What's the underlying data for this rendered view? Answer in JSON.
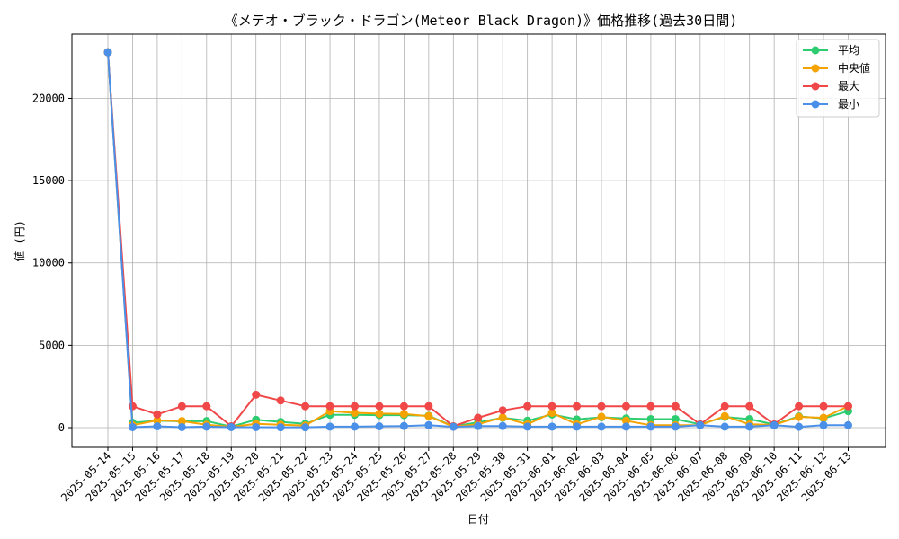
{
  "chart_data": {
    "type": "line",
    "title": "《メテオ・ブラック・ドラゴン(Meteor Black  Dragon)》価格推移(過去30日間)",
    "xlabel": "日付",
    "ylabel": "値 (円)",
    "ylim": [
      -1200,
      23900
    ],
    "yticks": [
      0,
      5000,
      10000,
      15000,
      20000
    ],
    "grid": true,
    "legend_position": "top-right",
    "categories": [
      "2025-05-14",
      "2025-05-15",
      "2025-05-16",
      "2025-05-17",
      "2025-05-18",
      "2025-05-19",
      "2025-05-20",
      "2025-05-21",
      "2025-05-22",
      "2025-05-23",
      "2025-05-24",
      "2025-05-25",
      "2025-05-26",
      "2025-05-27",
      "2025-05-28",
      "2025-05-29",
      "2025-05-30",
      "2025-05-31",
      "2025-06-01",
      "2025-06-02",
      "2025-06-03",
      "2025-06-04",
      "2025-06-05",
      "2025-06-06",
      "2025-06-07",
      "2025-06-08",
      "2025-06-09",
      "2025-06-10",
      "2025-06-11",
      "2025-06-12",
      "2025-06-13"
    ],
    "series": [
      {
        "name": "平均",
        "color": "#2ecc71",
        "values": [
          22800,
          300,
          420,
          380,
          400,
          60,
          480,
          350,
          230,
          780,
          780,
          760,
          760,
          720,
          80,
          320,
          600,
          420,
          800,
          500,
          630,
          560,
          520,
          520,
          200,
          650,
          520,
          190,
          680,
          560,
          1000
        ]
      },
      {
        "name": "中央値",
        "color": "#f5a300",
        "values": [
          22800,
          150,
          440,
          400,
          180,
          50,
          230,
          180,
          130,
          1000,
          900,
          850,
          830,
          700,
          60,
          210,
          620,
          200,
          900,
          200,
          660,
          420,
          150,
          150,
          160,
          700,
          200,
          170,
          650,
          600,
          1300
        ]
      },
      {
        "name": "最大",
        "color": "#f04848",
        "values": [
          22800,
          1300,
          800,
          1300,
          1300,
          80,
          2000,
          1650,
          1300,
          1300,
          1300,
          1300,
          1300,
          1300,
          80,
          600,
          1050,
          1300,
          1300,
          1300,
          1300,
          1300,
          1300,
          1300,
          200,
          1300,
          1300,
          200,
          1300,
          1300,
          1300
        ]
      },
      {
        "name": "最小",
        "color": "#4a90e8",
        "values": [
          22800,
          30,
          80,
          30,
          60,
          30,
          30,
          20,
          20,
          60,
          60,
          80,
          100,
          150,
          50,
          100,
          100,
          60,
          60,
          60,
          60,
          60,
          60,
          60,
          150,
          60,
          60,
          150,
          50,
          150,
          150
        ]
      }
    ]
  }
}
